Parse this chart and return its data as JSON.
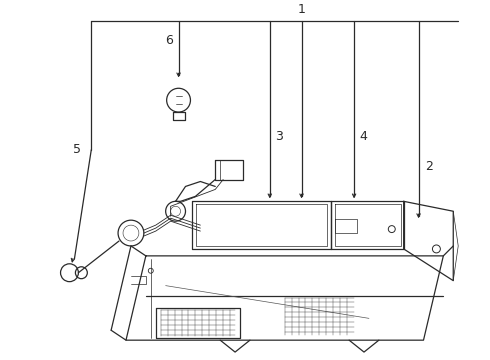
{
  "bg_color": "#ffffff",
  "line_color": "#2a2a2a",
  "label_color": "#111111",
  "label_fontsize": 9,
  "lw": 0.9
}
